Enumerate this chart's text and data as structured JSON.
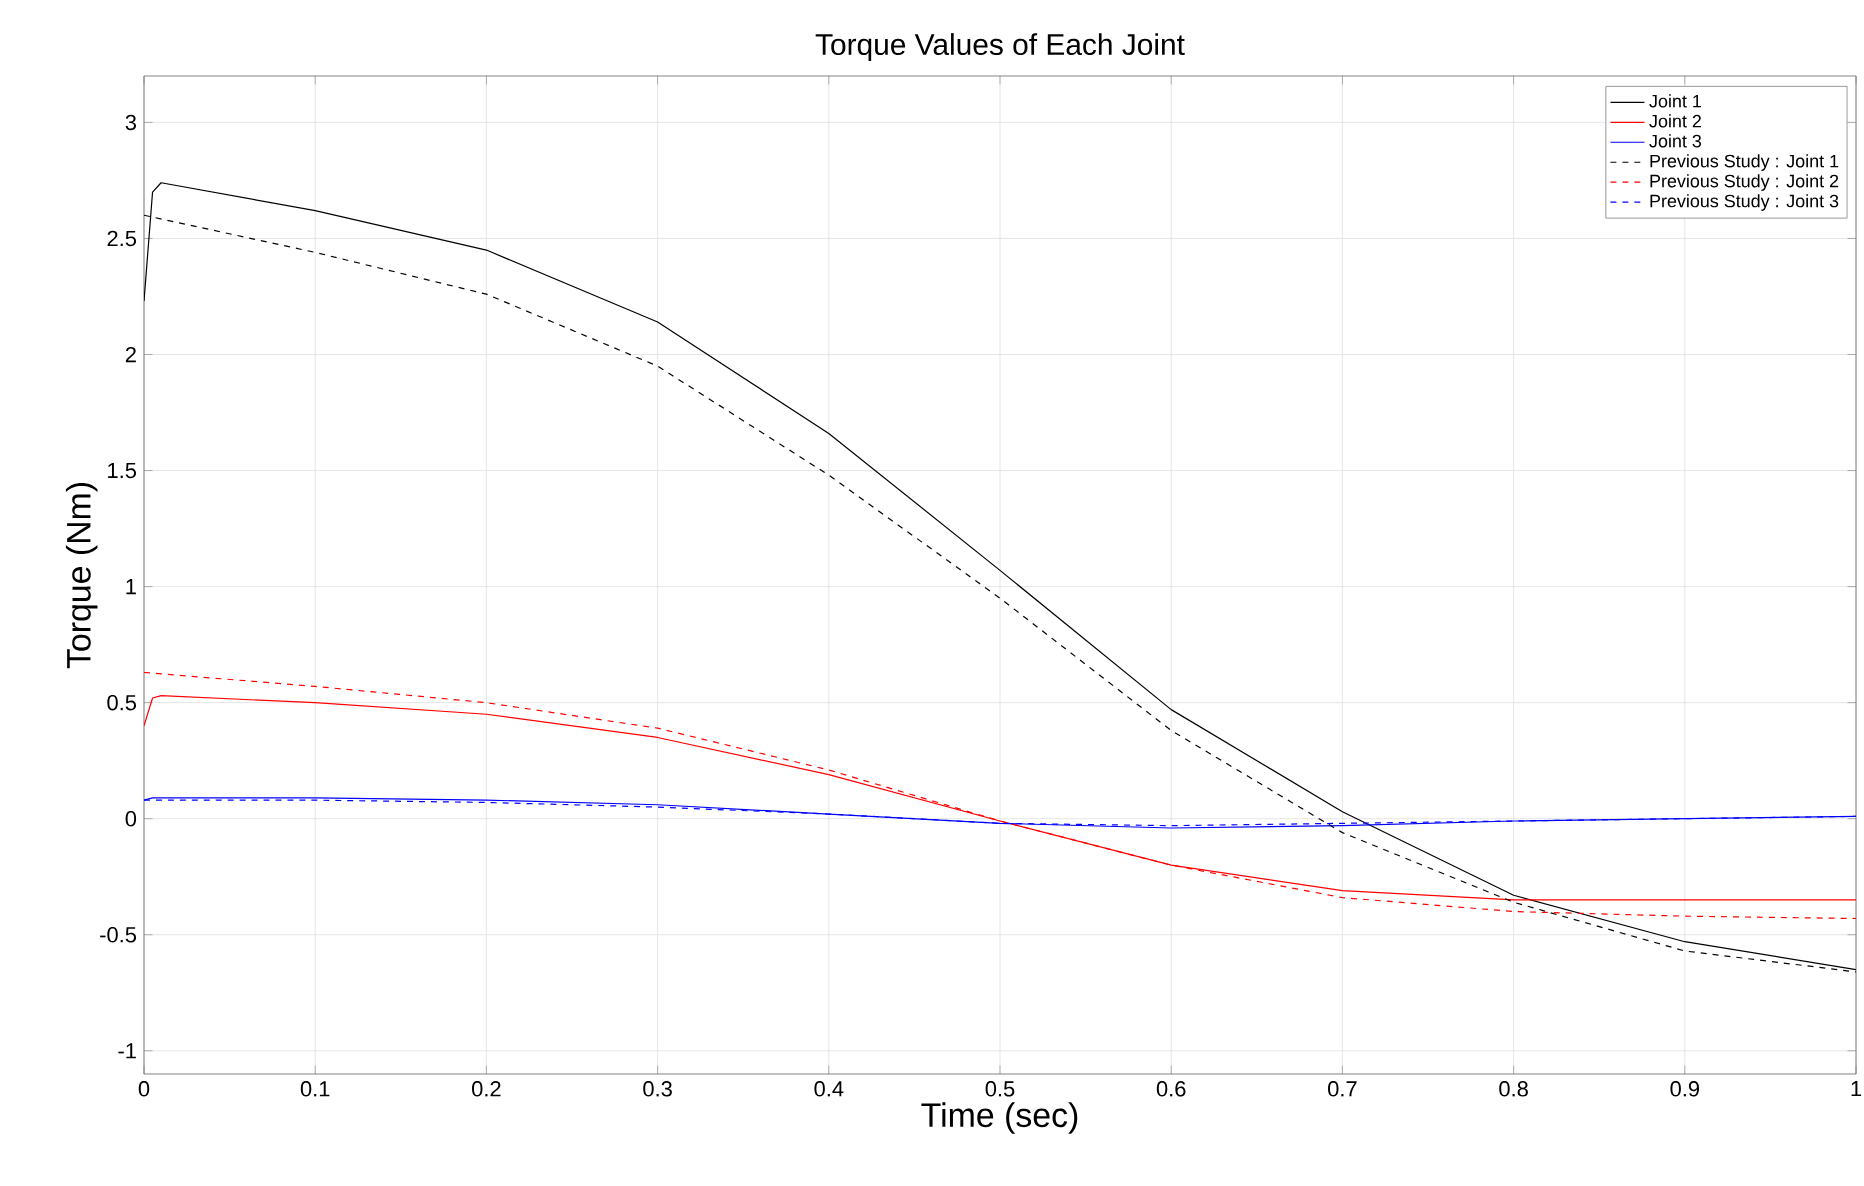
{
  "chart_data": {
    "type": "line",
    "title": "Torque Values of Each Joint",
    "xlabel": "Time (sec)",
    "ylabel": "Torque (Nm)",
    "xlim": [
      0,
      1
    ],
    "ylim": [
      -1.1,
      3.2
    ],
    "xticks": [
      0,
      0.1,
      0.2,
      0.3,
      0.4,
      0.5,
      0.6,
      0.7,
      0.8,
      0.9,
      1
    ],
    "yticks": [
      -1,
      -0.5,
      0,
      0.5,
      1,
      1.5,
      2,
      2.5,
      3
    ],
    "grid": true,
    "legend": "top right",
    "series": [
      {
        "name": "Joint 1",
        "color": "#000000",
        "line_style": "solid",
        "x": [
          0,
          0.005,
          0.01,
          0.1,
          0.2,
          0.3,
          0.4,
          0.5,
          0.6,
          0.7,
          0.8,
          0.9,
          1
        ],
        "values": [
          2.23,
          2.7,
          2.74,
          2.62,
          2.45,
          2.14,
          1.66,
          1.07,
          0.47,
          0.03,
          -0.33,
          -0.53,
          -0.65
        ]
      },
      {
        "name": "Joint 2",
        "color": "#ff0000",
        "line_style": "solid",
        "x": [
          0,
          0.005,
          0.01,
          0.1,
          0.2,
          0.3,
          0.4,
          0.5,
          0.6,
          0.7,
          0.8,
          0.9,
          1
        ],
        "values": [
          0.4,
          0.52,
          0.53,
          0.5,
          0.45,
          0.35,
          0.19,
          -0.01,
          -0.2,
          -0.31,
          -0.35,
          -0.35,
          -0.35
        ]
      },
      {
        "name": "Joint 3",
        "color": "#0000ff",
        "line_style": "solid",
        "x": [
          0,
          0.005,
          0.1,
          0.2,
          0.3,
          0.4,
          0.5,
          0.6,
          0.7,
          0.8,
          0.9,
          1
        ],
        "values": [
          0.08,
          0.09,
          0.09,
          0.08,
          0.06,
          0.02,
          -0.02,
          -0.04,
          -0.03,
          -0.01,
          0.0,
          0.01
        ]
      },
      {
        "name": "Previous Study : Joint 1",
        "color": "#000000",
        "line_style": "dashed",
        "x": [
          0,
          0.1,
          0.2,
          0.3,
          0.4,
          0.5,
          0.6,
          0.7,
          0.8,
          0.9,
          1
        ],
        "values": [
          2.6,
          2.44,
          2.26,
          1.95,
          1.48,
          0.95,
          0.38,
          -0.06,
          -0.36,
          -0.57,
          -0.66
        ]
      },
      {
        "name": "Previous Study : Joint 2",
        "color": "#ff0000",
        "line_style": "dashed",
        "x": [
          0,
          0.1,
          0.2,
          0.3,
          0.4,
          0.5,
          0.6,
          0.7,
          0.8,
          0.9,
          1
        ],
        "values": [
          0.63,
          0.57,
          0.5,
          0.39,
          0.21,
          -0.01,
          -0.2,
          -0.34,
          -0.4,
          -0.42,
          -0.43
        ]
      },
      {
        "name": "Previous Study : Joint 3",
        "color": "#0000ff",
        "line_style": "dashed",
        "x": [
          0,
          0.1,
          0.2,
          0.3,
          0.4,
          0.5,
          0.6,
          0.7,
          0.8,
          0.9,
          1
        ],
        "values": [
          0.08,
          0.08,
          0.07,
          0.05,
          0.02,
          -0.02,
          -0.03,
          -0.02,
          -0.01,
          0.0,
          0.01
        ]
      }
    ]
  }
}
